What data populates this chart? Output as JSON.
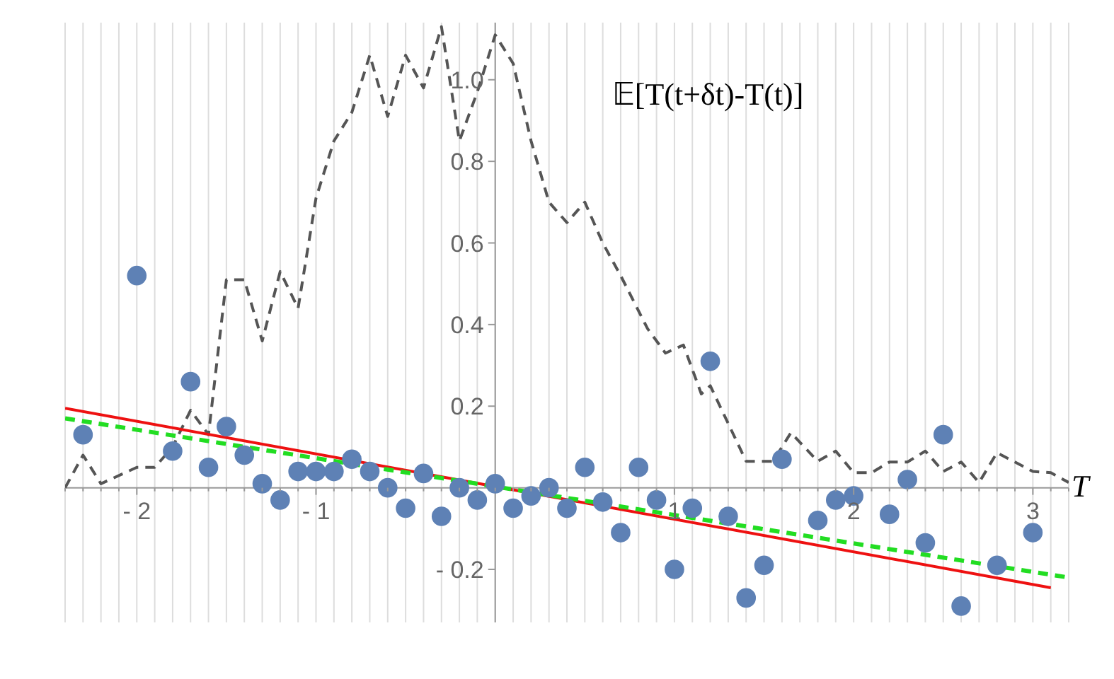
{
  "chart_data": {
    "type": "scatter",
    "xlabel": "T",
    "annotations": [
      "𝔼[T(t+δt)-T(t)]"
    ],
    "xlim": [
      -2.4,
      3.2
    ],
    "ylim": [
      -0.33,
      1.14
    ],
    "xticks": [
      {
        "value": -2.4,
        "label": null
      },
      {
        "value": -2.3,
        "label": null
      },
      {
        "value": -2.2,
        "label": null
      },
      {
        "value": -2.1,
        "label": null
      },
      {
        "value": -2,
        "label": "- 2"
      },
      {
        "value": -1.9,
        "label": null
      },
      {
        "value": -1.8,
        "label": null
      },
      {
        "value": -1.7,
        "label": null
      },
      {
        "value": -1.6,
        "label": null
      },
      {
        "value": -1.5,
        "label": null
      },
      {
        "value": -1.4,
        "label": null
      },
      {
        "value": -1.3,
        "label": null
      },
      {
        "value": -1.2,
        "label": null
      },
      {
        "value": -1.1,
        "label": null
      },
      {
        "value": -1,
        "label": "- 1"
      },
      {
        "value": -0.9,
        "label": null
      },
      {
        "value": -0.8,
        "label": null
      },
      {
        "value": -0.7,
        "label": null
      },
      {
        "value": -0.6,
        "label": null
      },
      {
        "value": -0.5,
        "label": null
      },
      {
        "value": -0.4,
        "label": null
      },
      {
        "value": -0.3,
        "label": null
      },
      {
        "value": -0.2,
        "label": null
      },
      {
        "value": -0.1,
        "label": null
      },
      {
        "value": 0,
        "label": null
      },
      {
        "value": 0.1,
        "label": null
      },
      {
        "value": 0.2,
        "label": null
      },
      {
        "value": 0.3,
        "label": null
      },
      {
        "value": 0.4,
        "label": null
      },
      {
        "value": 0.5,
        "label": null
      },
      {
        "value": 0.6,
        "label": null
      },
      {
        "value": 0.7,
        "label": null
      },
      {
        "value": 0.8,
        "label": null
      },
      {
        "value": 0.9,
        "label": null
      },
      1,
      {
        "value": 1.1,
        "label": null
      },
      {
        "value": 1.2,
        "label": null
      },
      {
        "value": 1.3,
        "label": null
      },
      {
        "value": 1.4,
        "label": null
      },
      {
        "value": 1.5,
        "label": null
      },
      {
        "value": 1.6,
        "label": null
      },
      {
        "value": 1.7,
        "label": null
      },
      {
        "value": 1.8,
        "label": null
      },
      {
        "value": 1.9,
        "label": null
      },
      2,
      {
        "value": 2.1,
        "label": null
      },
      {
        "value": 2.2,
        "label": null
      },
      {
        "value": 2.3,
        "label": null
      },
      {
        "value": 2.4,
        "label": null
      },
      {
        "value": 2.5,
        "label": null
      },
      {
        "value": 2.6,
        "label": null
      },
      {
        "value": 2.7,
        "label": null
      },
      {
        "value": 2.8,
        "label": null
      },
      {
        "value": 2.9,
        "label": null
      },
      3,
      {
        "value": 3.1,
        "label": null
      },
      {
        "value": 3.2,
        "label": null
      }
    ],
    "yticks": [
      {
        "value": -0.2,
        "label": "- 0.2"
      },
      0.2,
      0.4,
      0.6,
      0.8,
      {
        "value": 1.0,
        "label": "1.0"
      }
    ],
    "grid": "x",
    "legend": false,
    "series": [
      {
        "type": "line",
        "color": "#555555",
        "line_style": "dashed",
        "marker": "none",
        "x": [
          -2.4,
          -2.3,
          -2.2,
          -2.0,
          -1.9,
          -1.8,
          -1.7,
          -1.6,
          -1.5,
          -1.4,
          -1.3,
          -1.2,
          -1.1,
          -1.0,
          -0.9,
          -0.8,
          -0.7,
          -0.6,
          -0.5,
          -0.4,
          -0.3,
          -0.2,
          -0.1,
          0,
          0.1,
          0.2,
          0.3,
          0.4,
          0.5,
          0.6,
          0.7,
          0.85,
          0.95,
          1.05,
          1.15,
          1.2,
          1.4,
          1.55,
          1.65,
          1.8,
          1.9,
          2.0,
          2.1,
          2.2,
          2.3,
          2.4,
          2.5,
          2.6,
          2.7,
          2.8,
          3.0,
          3.1,
          3.2
        ],
        "values": [
          0,
          0.08,
          0.01,
          0.05,
          0.05,
          0.1,
          0.19,
          0.13,
          0.51,
          0.51,
          0.36,
          0.53,
          0.44,
          0.71,
          0.85,
          0.92,
          1.06,
          0.91,
          1.06,
          0.98,
          1.13,
          0.85,
          0.97,
          1.11,
          1.04,
          0.85,
          0.7,
          0.65,
          0.7,
          0.6,
          0.52,
          0.39,
          0.33,
          0.35,
          0.23,
          0.25,
          0.065,
          0.065,
          0.135,
          0.065,
          0.09,
          0.037,
          0.037,
          0.063,
          0.063,
          0.09,
          0.04,
          0.063,
          0.013,
          0.086,
          0.04,
          0.037,
          0.013
        ]
      },
      {
        "type": "line",
        "color": "#ee1111",
        "line_style": "solid",
        "marker": "none",
        "x": [
          -2.4,
          3.1
        ],
        "values": [
          0.195,
          -0.245
        ]
      },
      {
        "type": "line",
        "color": "#22dd22",
        "line_style": "dashed",
        "marker": "none",
        "x": [
          -2.4,
          3.2
        ],
        "values": [
          0.17,
          -0.22
        ]
      },
      {
        "color": "#5e81b5",
        "marker": "circle",
        "x": [
          -2.3,
          -2.0,
          -1.8,
          -1.7,
          -1.6,
          -1.5,
          -1.4,
          -1.3,
          -1.2,
          -1.1,
          -1.0,
          -0.9,
          -0.8,
          -0.7,
          -0.6,
          -0.5,
          -0.4,
          -0.3,
          -0.2,
          -0.1,
          0,
          0.1,
          0.2,
          0.3,
          0.4,
          0.5,
          0.6,
          0.7,
          0.8,
          0.9,
          1.0,
          1.1,
          1.2,
          1.3,
          1.4,
          1.5,
          1.6,
          1.8,
          1.9,
          2.0,
          2.2,
          2.3,
          2.4,
          2.5,
          2.6,
          2.8,
          3.0
        ],
        "values": [
          0.13,
          0.52,
          0.09,
          0.26,
          0.05,
          0.15,
          0.08,
          0.01,
          -0.03,
          0.04,
          0.04,
          0.04,
          0.07,
          0.04,
          0,
          -0.05,
          0.035,
          -0.07,
          0,
          -0.03,
          0.01,
          -0.05,
          -0.02,
          0,
          -0.05,
          0.05,
          -0.035,
          -0.11,
          0.05,
          -0.03,
          -0.2,
          -0.05,
          0.31,
          -0.07,
          -0.27,
          -0.19,
          0.07,
          -0.08,
          -0.03,
          -0.02,
          -0.065,
          0.02,
          -0.135,
          0.13,
          -0.29,
          -0.19,
          -0.11
        ]
      }
    ]
  }
}
